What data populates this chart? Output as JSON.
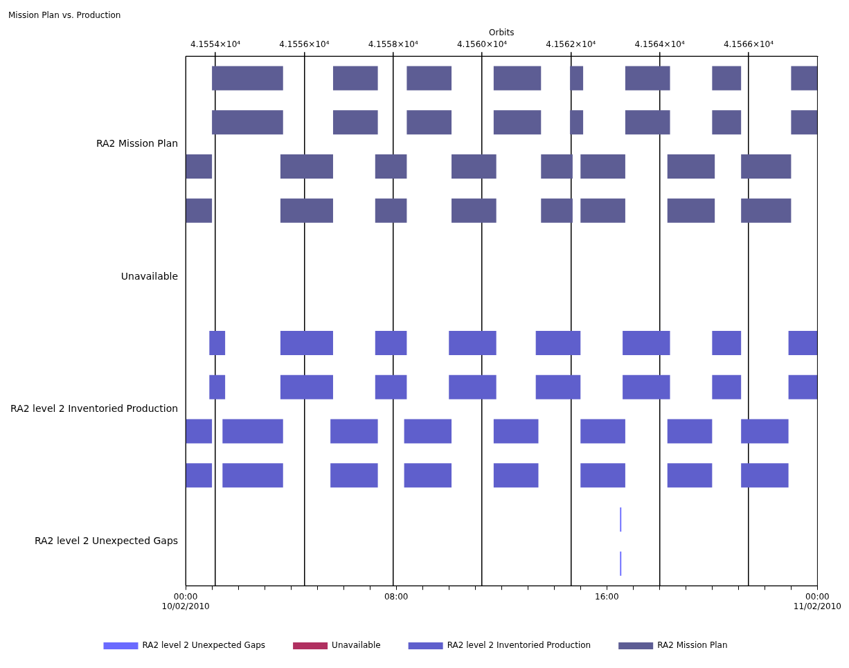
{
  "chart_data": {
    "type": "bar",
    "orientation": "horizontal",
    "title": "Mission Plan vs. Production",
    "x2label": "Orbits",
    "categories": [
      null,
      "RA2 Mission Plan",
      null,
      null,
      "Unavailable",
      null,
      null,
      "RA2 level 2 Inventoried Production",
      null,
      null,
      "RA2 level 2 Unexpected Gaps",
      null
    ],
    "xlim": [
      0,
      24
    ],
    "xticks": [
      {
        "value": 0,
        "label": "00:00\n10/02/2010"
      },
      {
        "value": 1,
        "label": null
      },
      {
        "value": 2,
        "label": null
      },
      {
        "value": 3,
        "label": null
      },
      {
        "value": 4,
        "label": null
      },
      {
        "value": 5,
        "label": null
      },
      {
        "value": 6,
        "label": null
      },
      {
        "value": 7,
        "label": null
      },
      {
        "value": 8,
        "label": "08:00"
      },
      {
        "value": 9,
        "label": null
      },
      {
        "value": 10,
        "label": null
      },
      {
        "value": 11,
        "label": null
      },
      {
        "value": 12,
        "label": null
      },
      {
        "value": 13,
        "label": null
      },
      {
        "value": 14,
        "label": null
      },
      {
        "value": 15,
        "label": null
      },
      {
        "value": 16,
        "label": "16:00"
      },
      {
        "value": 17,
        "label": null
      },
      {
        "value": 18,
        "label": null
      },
      {
        "value": 19,
        "label": null
      },
      {
        "value": 20,
        "label": null
      },
      {
        "value": 21,
        "label": null
      },
      {
        "value": 22,
        "label": null
      },
      {
        "value": 23,
        "label": null
      },
      {
        "value": 24,
        "label": "00:00\n11/02/2010"
      }
    ],
    "x2lim": [
      41553.33,
      41567.55
    ],
    "x2ticks": [
      {
        "value": 41554,
        "label": "4.1554×10⁴"
      },
      {
        "value": 41556,
        "label": "4.1556×10⁴"
      },
      {
        "value": 41558,
        "label": "4.1558×10⁴"
      },
      {
        "value": 41560,
        "label": "4.1560×10⁴"
      },
      {
        "value": 41562,
        "label": "4.1562×10⁴"
      },
      {
        "value": 41564,
        "label": "4.1564×10⁴"
      },
      {
        "value": 41566,
        "label": "4.1566×10⁴"
      }
    ],
    "grid": "x2",
    "legend": "bottom",
    "series": [
      {
        "name": "RA2 level 2 Unexpected Gaps",
        "color": "#6a6aff",
        "base": [
          null,
          null,
          null,
          null,
          null,
          null,
          null,
          null,
          null,
          null,
          16.5,
          16.5
        ],
        "values": [
          null,
          null,
          null,
          null,
          null,
          null,
          null,
          null,
          null,
          null,
          0.05,
          0.05
        ]
      },
      {
        "name": "Unavailable",
        "color": "#b03060",
        "base": [
          null,
          null,
          null,
          null,
          null,
          null,
          null,
          null,
          null,
          null,
          null,
          null
        ],
        "values": [
          null,
          null,
          null,
          null,
          null,
          null,
          null,
          null,
          null,
          null,
          null,
          null
        ]
      },
      {
        "name": "RA2 level 2 Inventoried Production",
        "color": "#5f5fcc",
        "base": [
          null,
          null,
          null,
          null,
          null,
          null,
          0.9,
          0.9,
          0,
          0,
          null,
          null
        ],
        "values": [
          null,
          null,
          null,
          null,
          null,
          null,
          0.6,
          0.6,
          1.0,
          1.0,
          null,
          null
        ]
      },
      {
        "color": "#5f5fcc",
        "base": [
          null,
          null,
          null,
          null,
          null,
          null,
          3.6,
          3.6,
          1.4,
          1.4,
          null,
          null
        ],
        "values": [
          null,
          null,
          null,
          null,
          null,
          null,
          2.0,
          2.0,
          2.3,
          2.3,
          null,
          null
        ]
      },
      {
        "color": "#5f5fcc",
        "base": [
          null,
          null,
          null,
          null,
          null,
          null,
          7.2,
          7.2,
          5.5,
          5.5,
          null,
          null
        ],
        "values": [
          null,
          null,
          null,
          null,
          null,
          null,
          1.2,
          1.2,
          1.8,
          1.8,
          null,
          null
        ]
      },
      {
        "color": "#5f5fcc",
        "base": [
          null,
          null,
          null,
          null,
          null,
          null,
          10.0,
          10.0,
          8.3,
          8.3,
          null,
          null
        ],
        "values": [
          null,
          null,
          null,
          null,
          null,
          null,
          1.8,
          1.8,
          1.8,
          1.8,
          null,
          null
        ]
      },
      {
        "color": "#5f5fcc",
        "base": [
          null,
          null,
          null,
          null,
          null,
          null,
          13.3,
          13.3,
          11.7,
          11.7,
          null,
          null
        ],
        "values": [
          null,
          null,
          null,
          null,
          null,
          null,
          1.7,
          1.7,
          1.7,
          1.7,
          null,
          null
        ]
      },
      {
        "color": "#5f5fcc",
        "base": [
          null,
          null,
          null,
          null,
          null,
          null,
          16.6,
          16.6,
          15.0,
          15.0,
          null,
          null
        ],
        "values": [
          null,
          null,
          null,
          null,
          null,
          null,
          1.8,
          1.8,
          1.7,
          1.7,
          null,
          null
        ]
      },
      {
        "color": "#5f5fcc",
        "base": [
          null,
          null,
          null,
          null,
          null,
          null,
          20.0,
          20.0,
          18.3,
          18.3,
          null,
          null
        ],
        "values": [
          null,
          null,
          null,
          null,
          null,
          null,
          1.1,
          1.1,
          1.7,
          1.7,
          null,
          null
        ]
      },
      {
        "color": "#5f5fcc",
        "base": [
          null,
          null,
          null,
          null,
          null,
          null,
          22.9,
          22.9,
          21.1,
          21.1,
          null,
          null
        ],
        "values": [
          null,
          null,
          null,
          null,
          null,
          null,
          1.1,
          1.1,
          1.8,
          1.8,
          null,
          null
        ]
      },
      {
        "name": "RA2 Mission Plan",
        "color": "#5d5d94",
        "base": [
          1.0,
          1.0,
          0,
          0,
          null,
          null,
          null,
          null,
          null,
          null,
          null,
          null
        ],
        "values": [
          2.7,
          2.7,
          1.0,
          1.0,
          null,
          null,
          null,
          null,
          null,
          null,
          null,
          null
        ]
      },
      {
        "color": "#5d5d94",
        "base": [
          5.6,
          5.6,
          3.6,
          3.6,
          null,
          null,
          null,
          null,
          null,
          null,
          null,
          null
        ],
        "values": [
          1.7,
          1.7,
          2.0,
          2.0,
          null,
          null,
          null,
          null,
          null,
          null,
          null,
          null
        ]
      },
      {
        "color": "#5d5d94",
        "base": [
          8.4,
          8.4,
          7.2,
          7.2,
          null,
          null,
          null,
          null,
          null,
          null,
          null,
          null
        ],
        "values": [
          1.7,
          1.7,
          1.2,
          1.2,
          null,
          null,
          null,
          null,
          null,
          null,
          null,
          null
        ]
      },
      {
        "color": "#5d5d94",
        "base": [
          11.7,
          11.7,
          10.1,
          10.1,
          null,
          null,
          null,
          null,
          null,
          null,
          null,
          null
        ],
        "values": [
          1.8,
          1.8,
          1.7,
          1.7,
          null,
          null,
          null,
          null,
          null,
          null,
          null,
          null
        ]
      },
      {
        "color": "#5d5d94",
        "base": [
          14.6,
          14.6,
          13.5,
          13.5,
          null,
          null,
          null,
          null,
          null,
          null,
          null,
          null
        ],
        "values": [
          0.5,
          0.5,
          1.2,
          1.2,
          null,
          null,
          null,
          null,
          null,
          null,
          null,
          null
        ]
      },
      {
        "color": "#5d5d94",
        "base": [
          16.7,
          16.7,
          15.0,
          15.0,
          null,
          null,
          null,
          null,
          null,
          null,
          null,
          null
        ],
        "values": [
          1.7,
          1.7,
          1.7,
          1.7,
          null,
          null,
          null,
          null,
          null,
          null,
          null,
          null
        ]
      },
      {
        "color": "#5d5d94",
        "base": [
          20.0,
          20.0,
          18.3,
          18.3,
          null,
          null,
          null,
          null,
          null,
          null,
          null,
          null
        ],
        "values": [
          1.1,
          1.1,
          1.8,
          1.8,
          null,
          null,
          null,
          null,
          null,
          null,
          null,
          null
        ]
      },
      {
        "color": "#5d5d94",
        "base": [
          23.0,
          23.0,
          21.1,
          21.1,
          null,
          null,
          null,
          null,
          null,
          null,
          null,
          null
        ],
        "values": [
          1.0,
          1.0,
          1.9,
          1.9,
          null,
          null,
          null,
          null,
          null,
          null,
          null,
          null
        ]
      }
    ]
  }
}
